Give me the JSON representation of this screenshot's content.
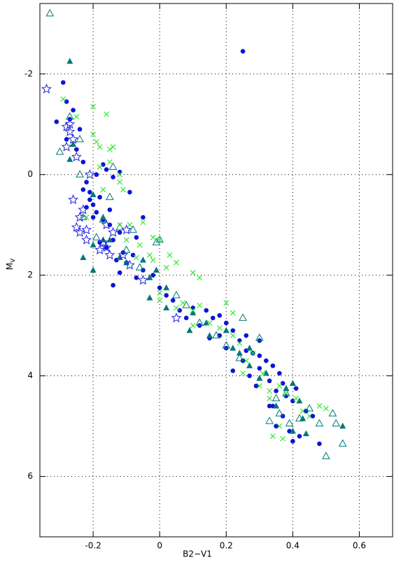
{
  "chart_data": {
    "type": "scatter",
    "xlabel": "B2−V1",
    "ylabel": "M",
    "ylabel_subscript": "V",
    "xlim": [
      -0.36,
      0.7
    ],
    "ylim": [
      7.2,
      -3.4
    ],
    "xticks": [
      -0.2,
      0,
      0.2,
      0.4,
      0.6
    ],
    "yticks": [
      -2,
      0,
      2,
      4,
      6
    ],
    "grid": true,
    "series": [
      {
        "marker": "circle",
        "color": "#0a14d8",
        "x": [
          0.25,
          -0.29,
          -0.28,
          -0.26,
          -0.27,
          -0.31,
          -0.24,
          -0.28,
          -0.25,
          -0.23,
          -0.19,
          -0.22,
          -0.21,
          -0.18,
          -0.2,
          -0.22,
          -0.19,
          -0.17,
          -0.15,
          -0.12,
          -0.14,
          -0.16,
          -0.11,
          -0.08,
          -0.1,
          -0.12,
          -0.14,
          -0.07,
          -0.05,
          -0.02,
          0.0,
          0.02,
          0.04,
          0.06,
          0.1,
          0.14,
          0.18,
          0.2,
          0.22,
          0.18,
          0.24,
          0.2,
          0.26,
          0.28,
          0.3,
          0.25,
          0.22,
          0.3,
          0.32,
          0.34,
          0.36,
          0.27,
          0.33,
          0.29,
          0.35,
          0.38,
          0.4,
          0.33,
          0.37,
          0.35,
          0.39,
          0.42,
          0.46,
          0.48,
          0.41,
          0.37,
          -0.17,
          -0.14,
          -0.09,
          -0.16,
          -0.12,
          -0.05,
          -0.07,
          -0.2,
          -0.23,
          -0.18,
          0.12,
          0.16,
          0.26,
          0.3,
          0.34,
          0.4,
          0.44,
          -0.21,
          -0.15,
          -0.13,
          0.08,
          0.15
        ],
        "y": [
          -2.45,
          -1.83,
          -1.45,
          -1.28,
          -1.1,
          -1.05,
          -0.9,
          -0.7,
          -0.5,
          -0.25,
          0.0,
          0.15,
          0.35,
          0.45,
          0.6,
          0.65,
          0.75,
          0.9,
          1.0,
          1.15,
          1.3,
          1.45,
          1.55,
          1.6,
          1.75,
          1.95,
          2.2,
          2.05,
          1.9,
          2.0,
          2.25,
          2.4,
          2.5,
          2.7,
          2.65,
          2.7,
          2.8,
          2.95,
          3.1,
          3.2,
          3.3,
          3.45,
          3.5,
          3.55,
          3.6,
          3.7,
          3.9,
          3.85,
          3.7,
          3.8,
          3.95,
          4.0,
          4.1,
          4.2,
          4.3,
          4.4,
          4.5,
          4.6,
          4.8,
          5.0,
          5.1,
          5.2,
          4.8,
          5.35,
          4.25,
          4.15,
          -0.2,
          0.05,
          0.35,
          -0.1,
          -0.05,
          0.85,
          1.25,
          0.85,
          0.3,
          1.35,
          3.0,
          2.85,
          3.2,
          3.3,
          4.6,
          5.3,
          4.7,
          0.5,
          0.7,
          1.7,
          2.85,
          3.25
        ]
      },
      {
        "marker": "triangle",
        "color": "#007878",
        "x": [
          -0.27,
          -0.26,
          -0.27,
          -0.2,
          -0.2,
          -0.23,
          -0.2,
          -0.15,
          -0.1,
          -0.05,
          -0.03,
          -0.01,
          0.02,
          -0.03,
          0.02,
          0.1,
          0.14,
          0.15,
          0.2,
          0.22,
          0.24,
          0.27,
          0.3,
          0.32,
          0.4,
          0.42,
          0.35,
          0.43,
          0.4,
          0.44,
          0.55,
          -0.17,
          -0.12,
          0.09,
          -0.17,
          0.27,
          0.38
        ],
        "y": [
          -2.25,
          -0.6,
          -0.3,
          0.4,
          1.4,
          1.65,
          1.9,
          1.3,
          1.75,
          1.7,
          2.05,
          1.9,
          2.25,
          2.45,
          2.65,
          2.75,
          2.95,
          3.2,
          3.1,
          3.45,
          3.55,
          3.8,
          4.05,
          3.95,
          4.15,
          4.5,
          4.6,
          4.85,
          5.1,
          5.15,
          5.0,
          1.3,
          1.65,
          3.1,
          0.85,
          3.45,
          4.25
        ]
      },
      {
        "marker": "open-triangle",
        "color": "#007878",
        "x": [
          -0.33,
          -0.27,
          -0.3,
          -0.24,
          -0.24,
          -0.23,
          -0.15,
          -0.17,
          -0.12,
          -0.1,
          -0.06,
          -0.01,
          0.05,
          0.12,
          0.17,
          0.2,
          0.25,
          0.3,
          0.24,
          0.38,
          0.33,
          0.36,
          0.39,
          0.42,
          0.48,
          0.52,
          0.53,
          0.55,
          0.5,
          0.45,
          -0.14,
          -0.08,
          0.0,
          -0.19,
          0.08,
          0.35
        ],
        "y": [
          -3.2,
          -1.15,
          -0.45,
          -0.7,
          0.0,
          0.85,
          0.45,
          0.9,
          1.05,
          1.5,
          1.85,
          1.35,
          2.4,
          2.95,
          3.2,
          3.4,
          2.85,
          3.25,
          3.65,
          4.35,
          4.9,
          4.75,
          4.95,
          4.85,
          4.95,
          4.75,
          4.95,
          5.35,
          5.6,
          4.65,
          -0.15,
          1.1,
          1.3,
          1.25,
          2.6,
          4.45
        ]
      },
      {
        "marker": "cross",
        "color": "#33e833",
        "x": [
          -0.29,
          -0.25,
          -0.2,
          -0.16,
          -0.2,
          -0.18,
          -0.15,
          -0.17,
          -0.12,
          -0.14,
          -0.18,
          -0.12,
          -0.12,
          -0.05,
          -0.02,
          0.0,
          0.03,
          -0.06,
          -0.02,
          -0.03,
          0.05,
          0.1,
          0.12,
          0.07,
          0.05,
          0.1,
          0.12,
          0.15,
          0.2,
          0.22,
          0.22,
          0.24,
          0.25,
          0.28,
          0.31,
          0.33,
          0.36,
          0.38,
          0.41,
          0.43,
          0.45,
          0.48,
          0.5,
          0.37,
          0.34,
          0.36,
          0.26,
          0.18,
          -0.09,
          -0.07,
          -0.1,
          0.02,
          -0.11,
          -0.15,
          0.0,
          0.1,
          0.3,
          0.33,
          -0.19,
          -0.22,
          0.0
        ],
        "y": [
          -1.5,
          -1.15,
          -1.35,
          -1.2,
          -0.8,
          -0.55,
          -0.25,
          0.3,
          0.0,
          -0.55,
          -0.15,
          0.15,
          1.0,
          0.95,
          1.25,
          1.3,
          1.6,
          1.4,
          1.7,
          1.6,
          1.75,
          1.95,
          2.05,
          2.55,
          2.65,
          2.7,
          2.6,
          2.95,
          2.55,
          2.75,
          3.2,
          3.35,
          3.95,
          3.55,
          3.95,
          4.3,
          4.2,
          4.35,
          4.45,
          4.7,
          4.8,
          4.6,
          4.65,
          5.25,
          5.2,
          5.0,
          3.7,
          3.05,
          1.0,
          1.65,
          1.3,
          1.85,
          0.3,
          -0.5,
          2.5,
          3.0,
          4.2,
          4.45,
          -0.65,
          0.85,
          2.35
        ]
      },
      {
        "marker": "star",
        "color": "#2020e0",
        "x": [
          -0.34,
          -0.27,
          -0.28,
          -0.27,
          -0.28,
          -0.26,
          -0.25,
          -0.26,
          -0.23,
          -0.24,
          -0.25,
          -0.24,
          -0.22,
          -0.17,
          -0.16,
          -0.1,
          -0.15,
          -0.18,
          -0.11,
          -0.14,
          -0.09,
          -0.05,
          0.05,
          -0.16,
          -0.21,
          -0.22
        ],
        "y": [
          -1.7,
          -1.0,
          -0.95,
          -0.85,
          -0.55,
          -0.7,
          -0.35,
          0.5,
          0.7,
          0.85,
          1.05,
          1.15,
          1.3,
          1.35,
          1.45,
          1.1,
          1.6,
          1.5,
          1.6,
          1.15,
          1.8,
          2.1,
          2.85,
          1.0,
          0.0,
          1.1
        ]
      }
    ]
  }
}
